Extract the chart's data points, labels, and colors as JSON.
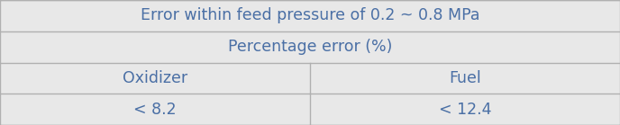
{
  "title_row": "Error within feed pressure of 0.2 ~ 0.8 MPa",
  "subtitle_row": "Percentage error (%)",
  "col_headers": [
    "Oxidizer",
    "Fuel"
  ],
  "data_row": [
    "< 8.2",
    "< 12.4"
  ],
  "bg_color": "#e8e8e8",
  "border_color": "#b0b0b0",
  "text_color": "#4a6fa5",
  "font_size": 12.5,
  "figsize": [
    6.88,
    1.39
  ],
  "dpi": 100
}
